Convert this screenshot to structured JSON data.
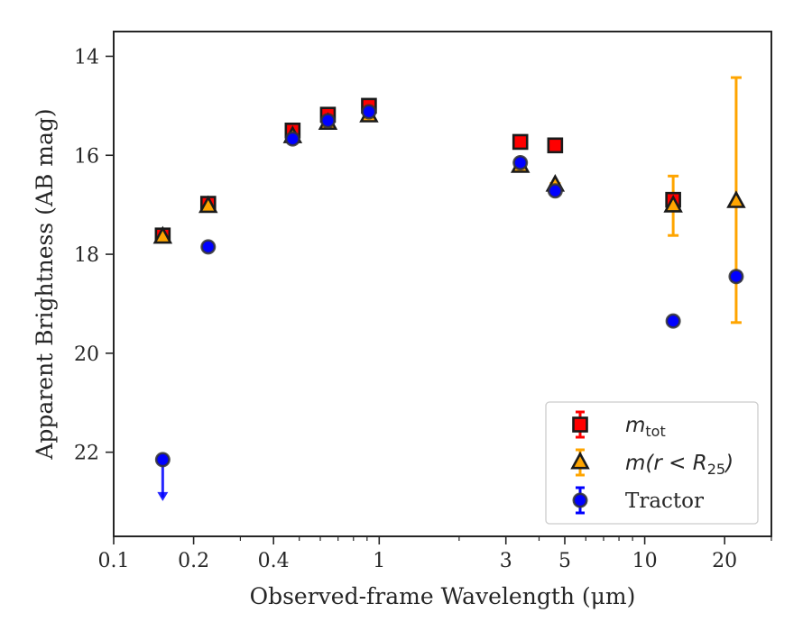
{
  "chart_data": {
    "type": "scatter",
    "xlabel": "Observed-frame Wavelength (μm)",
    "ylabel": "Apparent Brightness (AB mag)",
    "xscale": "log",
    "yaxis_inverted": true,
    "xlim": [
      0.1,
      30
    ],
    "ylim": [
      23.7,
      13.5
    ],
    "x_ticks": [
      {
        "value": 0.1,
        "label": "0.1"
      },
      {
        "value": 0.2,
        "label": "0.2"
      },
      {
        "value": 0.4,
        "label": "0.4"
      },
      {
        "value": 1,
        "label": "1"
      },
      {
        "value": 3,
        "label": "3"
      },
      {
        "value": 5,
        "label": "5"
      },
      {
        "value": 10,
        "label": "10"
      },
      {
        "value": 20,
        "label": "20"
      }
    ],
    "y_ticks": [
      {
        "value": 14,
        "label": "14"
      },
      {
        "value": 16,
        "label": "16"
      },
      {
        "value": 18,
        "label": "18"
      },
      {
        "value": 20,
        "label": "20"
      },
      {
        "value": 22,
        "label": "22"
      }
    ],
    "grid": false,
    "legend_position": "lower right",
    "series": [
      {
        "name": "m_tot",
        "marker": "square",
        "fill_color": "#ff0000",
        "edge_color": "#1a1a1a",
        "error_color": "#ff0000",
        "points": [
          {
            "x": 0.153,
            "y": 17.62,
            "yerr": 0.05
          },
          {
            "x": 0.227,
            "y": 16.98,
            "yerr": 0.05
          },
          {
            "x": 0.472,
            "y": 15.5,
            "yerr": 0.03
          },
          {
            "x": 0.641,
            "y": 15.18,
            "yerr": 0.03
          },
          {
            "x": 0.915,
            "y": 15.0,
            "yerr": 0.03
          },
          {
            "x": 3.4,
            "y": 15.73,
            "yerr": 0.03
          },
          {
            "x": 4.6,
            "y": 15.8,
            "yerr": 0.03
          },
          {
            "x": 12.8,
            "y": 16.9,
            "yerr": 0.05
          }
        ]
      },
      {
        "name": "m(r < R25)",
        "marker": "triangle",
        "fill_color": "#ffa500",
        "edge_color": "#1a1a1a",
        "error_color": "#ffa500",
        "points": [
          {
            "x": 0.153,
            "y": 17.65,
            "yerr": 0.05
          },
          {
            "x": 0.227,
            "y": 17.03,
            "yerr": 0.05
          },
          {
            "x": 0.472,
            "y": 15.62,
            "yerr": 0.03
          },
          {
            "x": 0.641,
            "y": 15.35,
            "yerr": 0.03
          },
          {
            "x": 0.915,
            "y": 15.2,
            "yerr": 0.03
          },
          {
            "x": 3.4,
            "y": 16.22,
            "yerr": 0.03
          },
          {
            "x": 4.6,
            "y": 16.6,
            "yerr": 0.03
          },
          {
            "x": 12.8,
            "y": 17.02,
            "yerr": 0.6
          },
          {
            "x": 22.1,
            "y": 16.93,
            "yerr_low": 2.45,
            "yerr_high": 2.5
          }
        ]
      },
      {
        "name": "Tractor",
        "marker": "circle",
        "fill_color": "#0000ff",
        "edge_color": "#333333",
        "error_color": "#0000ff",
        "points": [
          {
            "x": 0.153,
            "y": 22.15,
            "upper_limit": true
          },
          {
            "x": 0.227,
            "y": 17.85,
            "yerr": 0.05
          },
          {
            "x": 0.472,
            "y": 15.67,
            "yerr": 0.03
          },
          {
            "x": 0.641,
            "y": 15.3,
            "yerr": 0.03
          },
          {
            "x": 0.915,
            "y": 15.12,
            "yerr": 0.03
          },
          {
            "x": 3.4,
            "y": 16.15,
            "yerr": 0.03
          },
          {
            "x": 4.6,
            "y": 16.72,
            "yerr": 0.03
          },
          {
            "x": 12.8,
            "y": 19.35,
            "yerr": 0.05
          },
          {
            "x": 22.1,
            "y": 18.45,
            "yerr": 0.08
          }
        ]
      }
    ]
  }
}
